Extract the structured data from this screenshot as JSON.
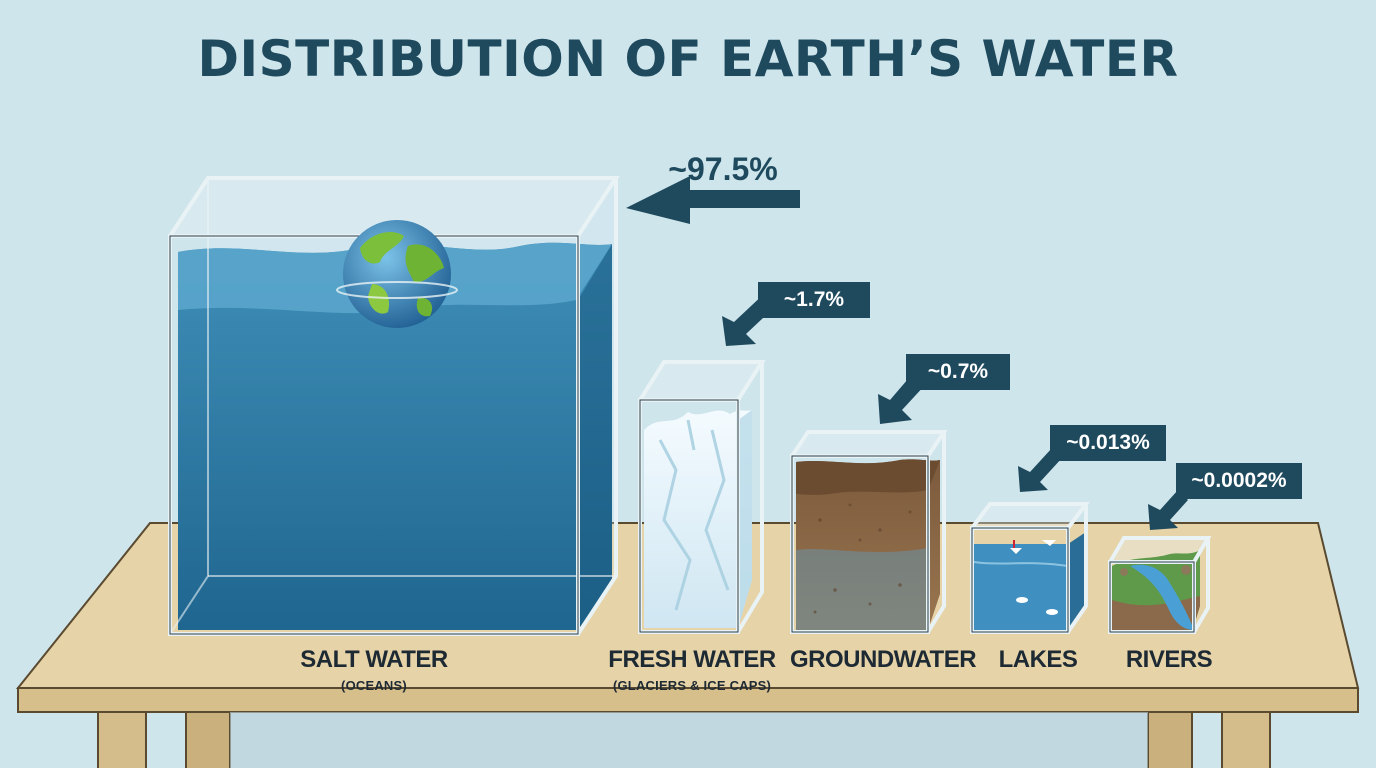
{
  "title": "DISTRIBUTION OF EARTH’S WATER",
  "containers": [
    {
      "id": "salt",
      "percent_label": "~97.5%",
      "name": "SALT WATER",
      "sub": "(OCEANS)",
      "percent": 97.5
    },
    {
      "id": "fresh",
      "percent_label": "~1.7%",
      "name": "FRESH WATER",
      "sub": "(GLACIERS & ICE CAPS)",
      "percent": 1.7
    },
    {
      "id": "ground",
      "percent_label": "~0.7%",
      "name": "GROUNDWATER",
      "sub": "",
      "percent": 0.7
    },
    {
      "id": "lakes",
      "percent_label": "~0.013%",
      "name": "LAKES",
      "sub": "",
      "percent": 0.013
    },
    {
      "id": "rivers",
      "percent_label": "~0.0002%",
      "name": "RIVERS",
      "sub": "",
      "percent": 0.0002
    }
  ],
  "colors": {
    "background": "#cfe5ec",
    "title": "#1f4a5e",
    "callout": "#1f4a5e",
    "ocean": "#2e7aa3",
    "ice": "#e9f5fb",
    "soil": "#8a6a4a",
    "table": "#e6d3a8"
  }
}
